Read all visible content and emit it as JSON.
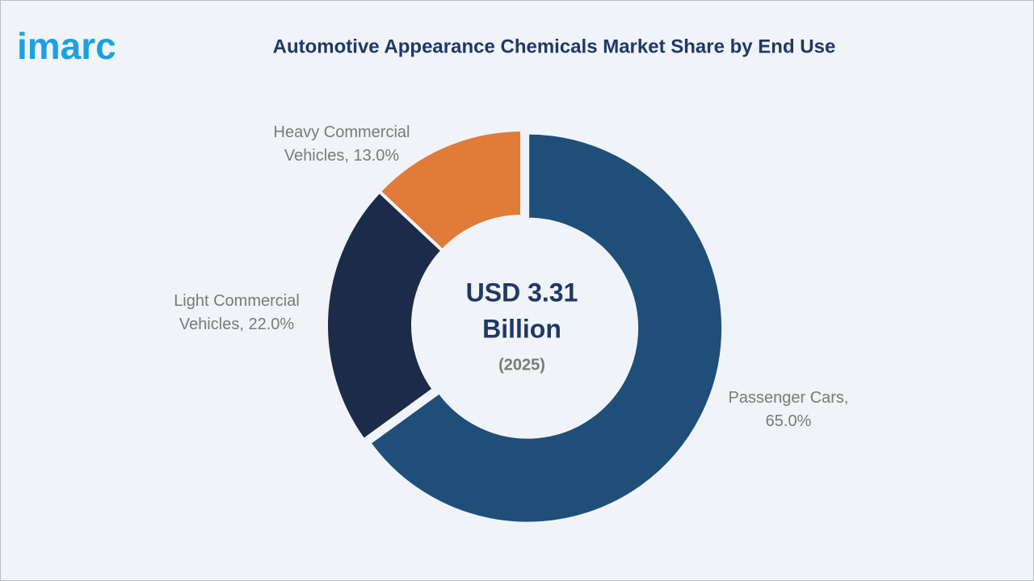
{
  "logo": "imarc",
  "chart_data": {
    "type": "pie",
    "donut": true,
    "title": "Automotive Appearance Chemicals Market Share by End Use",
    "categories": [
      "Passenger Cars",
      "Light Commercial Vehicles",
      "Heavy Commercial Vehicles"
    ],
    "values": [
      65,
      22,
      13
    ],
    "value_labels": [
      "65.0%",
      "22.0%",
      "13.0%"
    ],
    "label_separator": ",",
    "colors": [
      "#1f4e79",
      "#1c2b4a",
      "#e07b39"
    ],
    "center_text": [
      "USD 3.31",
      "Billion",
      "(2025)"
    ]
  }
}
